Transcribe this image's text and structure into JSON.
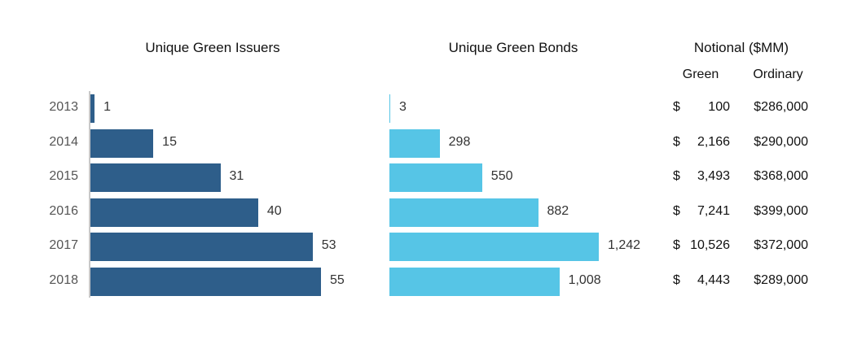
{
  "titles": {
    "issuers": "Unique Green Issuers",
    "bonds": "Unique Green Bonds",
    "notional": "Notional ($MM)",
    "green": "Green",
    "ordinary": "Ordinary"
  },
  "colors": {
    "issuers": "#2e5e8a",
    "bonds": "#56c5e6"
  },
  "chart_data": [
    {
      "type": "bar",
      "orientation": "horizontal",
      "title": "Unique Green Issuers",
      "categories": [
        "2013",
        "2014",
        "2015",
        "2016",
        "2017",
        "2018"
      ],
      "values": [
        1,
        15,
        31,
        40,
        53,
        55
      ],
      "labels": [
        "1",
        "15",
        "31",
        "40",
        "53",
        "55"
      ],
      "xlim": [
        0,
        55
      ]
    },
    {
      "type": "bar",
      "orientation": "horizontal",
      "title": "Unique Green Bonds",
      "categories": [
        "2013",
        "2014",
        "2015",
        "2016",
        "2017",
        "2018"
      ],
      "values": [
        3,
        298,
        550,
        882,
        1242,
        1008
      ],
      "labels": [
        "3",
        "298",
        "550",
        "882",
        "1,242",
        "1,008"
      ],
      "xlim": [
        0,
        1242
      ]
    },
    {
      "type": "table",
      "title": "Notional ($MM)",
      "columns": [
        "Green",
        "Ordinary"
      ],
      "rows": [
        {
          "year": "2013",
          "currency": "$",
          "green": "100",
          "ordinary": "$286,000"
        },
        {
          "year": "2014",
          "currency": "$",
          "green": "2,166",
          "ordinary": "$290,000"
        },
        {
          "year": "2015",
          "currency": "$",
          "green": "3,493",
          "ordinary": "$368,000"
        },
        {
          "year": "2016",
          "currency": "$",
          "green": "7,241",
          "ordinary": "$399,000"
        },
        {
          "year": "2017",
          "currency": "$",
          "green": "10,526",
          "ordinary": "$372,000"
        },
        {
          "year": "2018",
          "currency": "$",
          "green": "4,443",
          "ordinary": "$289,000"
        }
      ]
    }
  ]
}
